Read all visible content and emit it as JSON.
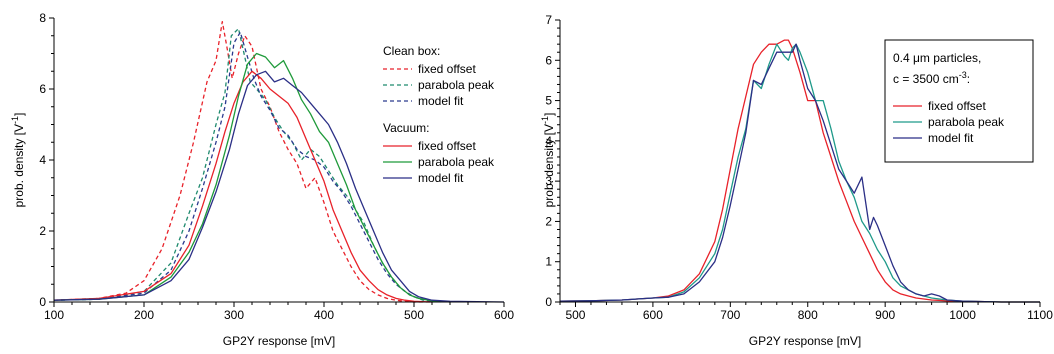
{
  "chart_data": [
    {
      "type": "line",
      "xlabel": "GP2Y response [mV]",
      "ylabel": "prob. density [V",
      "ylabel_sup": "-1",
      "ylabel_close": "]",
      "xlim": [
        100,
        600
      ],
      "ylim": [
        0,
        8
      ],
      "xticks": [
        100,
        200,
        300,
        400,
        500,
        600
      ],
      "yticks": [
        0,
        2,
        4,
        6,
        8
      ],
      "legend_groups": [
        {
          "title": "Clean box:",
          "entries": [
            "fixed offset",
            "parabola peak",
            "model fit"
          ]
        },
        {
          "title": "Vacuum:",
          "entries": [
            "fixed offset",
            "parabola peak",
            "model fit"
          ]
        }
      ],
      "series": [
        {
          "name": "fixed offset",
          "group": "Clean box:",
          "color": "#e8222a",
          "dash": true,
          "x": [
            100,
            150,
            180,
            200,
            220,
            240,
            255,
            270,
            280,
            287,
            292,
            298,
            305,
            312,
            320,
            330,
            340,
            350,
            360,
            370,
            380,
            390,
            400,
            410,
            420,
            430,
            440,
            450,
            460,
            470,
            480,
            490,
            500,
            520
          ],
          "y": [
            0.05,
            0.1,
            0.25,
            0.6,
            1.5,
            3.0,
            4.5,
            6.2,
            6.8,
            7.9,
            7.2,
            6.3,
            7.0,
            7.5,
            7.2,
            6.0,
            5.5,
            4.8,
            4.3,
            3.9,
            3.2,
            3.5,
            2.8,
            2.0,
            1.5,
            1.0,
            0.6,
            0.35,
            0.2,
            0.1,
            0.05,
            0.02,
            0.0,
            0.0
          ]
        },
        {
          "name": "parabola peak",
          "group": "Clean box:",
          "color": "#1f8a6e",
          "dash": true,
          "x": [
            100,
            150,
            200,
            230,
            250,
            265,
            280,
            290,
            297,
            305,
            312,
            318,
            325,
            335,
            345,
            355,
            365,
            375,
            385,
            395,
            405,
            415,
            425,
            435,
            445,
            455,
            465,
            475,
            485,
            495,
            510,
            530
          ],
          "y": [
            0.05,
            0.08,
            0.3,
            1.1,
            2.5,
            3.5,
            5.0,
            5.9,
            7.5,
            7.7,
            6.9,
            6.2,
            6.0,
            5.7,
            5.2,
            4.8,
            4.5,
            4.0,
            4.3,
            4.1,
            3.7,
            3.3,
            3.0,
            2.6,
            2.2,
            1.6,
            1.1,
            0.7,
            0.4,
            0.2,
            0.05,
            0.0
          ]
        },
        {
          "name": "model fit",
          "group": "Clean box:",
          "color": "#2b3a8e",
          "dash": true,
          "x": [
            100,
            150,
            200,
            230,
            250,
            265,
            280,
            290,
            300,
            307,
            315,
            322,
            330,
            340,
            350,
            360,
            370,
            380,
            390,
            400,
            410,
            420,
            430,
            440,
            450,
            460,
            470,
            480,
            490,
            500,
            520
          ],
          "y": [
            0.05,
            0.08,
            0.25,
            0.9,
            2.0,
            3.2,
            4.5,
            5.5,
            7.3,
            7.6,
            6.9,
            6.3,
            5.8,
            5.4,
            4.9,
            4.7,
            4.3,
            4.1,
            4.0,
            3.8,
            3.4,
            3.1,
            2.7,
            2.2,
            1.7,
            1.2,
            0.8,
            0.5,
            0.3,
            0.15,
            0.0
          ]
        },
        {
          "name": "fixed offset",
          "group": "Vacuum:",
          "color": "#e8222a",
          "dash": false,
          "x": [
            100,
            150,
            200,
            230,
            250,
            265,
            280,
            290,
            300,
            310,
            320,
            330,
            340,
            350,
            360,
            370,
            380,
            390,
            400,
            410,
            420,
            430,
            440,
            450,
            460,
            470,
            480,
            490,
            500,
            520
          ],
          "y": [
            0.05,
            0.1,
            0.3,
            0.8,
            1.6,
            2.7,
            3.9,
            4.8,
            5.6,
            6.2,
            6.5,
            6.3,
            6.0,
            5.8,
            5.6,
            5.2,
            4.6,
            4.0,
            3.4,
            2.6,
            2.0,
            1.4,
            0.9,
            0.6,
            0.35,
            0.2,
            0.1,
            0.05,
            0.02,
            0.0
          ]
        },
        {
          "name": "parabola peak",
          "group": "Vacuum:",
          "color": "#1f9a3a",
          "dash": false,
          "x": [
            100,
            150,
            200,
            230,
            250,
            265,
            280,
            295,
            305,
            315,
            325,
            335,
            345,
            355,
            365,
            375,
            385,
            395,
            405,
            415,
            425,
            435,
            445,
            455,
            465,
            475,
            485,
            495,
            505,
            520,
            540
          ],
          "y": [
            0.05,
            0.08,
            0.2,
            0.7,
            1.4,
            2.2,
            3.3,
            4.7,
            5.8,
            6.7,
            7.0,
            6.9,
            6.6,
            6.8,
            6.3,
            5.7,
            5.3,
            4.8,
            4.5,
            3.9,
            3.3,
            2.6,
            2.1,
            1.6,
            1.1,
            0.7,
            0.4,
            0.2,
            0.1,
            0.03,
            0.0
          ]
        },
        {
          "name": "model fit",
          "group": "Vacuum:",
          "color": "#2b2f86",
          "dash": false,
          "x": [
            100,
            150,
            200,
            230,
            250,
            265,
            280,
            295,
            305,
            315,
            325,
            335,
            345,
            355,
            365,
            375,
            385,
            395,
            405,
            415,
            425,
            435,
            445,
            455,
            465,
            475,
            485,
            495,
            505,
            520,
            540,
            600
          ],
          "y": [
            0.05,
            0.08,
            0.2,
            0.6,
            1.2,
            2.1,
            3.1,
            4.3,
            5.3,
            6.1,
            6.4,
            6.5,
            6.2,
            6.3,
            6.1,
            5.9,
            5.6,
            5.3,
            5.0,
            4.5,
            3.9,
            3.2,
            2.6,
            2.0,
            1.4,
            0.9,
            0.6,
            0.3,
            0.15,
            0.05,
            0.02,
            0.0
          ]
        }
      ]
    },
    {
      "type": "line",
      "xlabel": "GP2Y response [mV]",
      "ylabel": "prob. density [V",
      "ylabel_sup": "-1",
      "ylabel_close": "]",
      "xlim": [
        480,
        1100
      ],
      "ylim": [
        0,
        7
      ],
      "xticks": [
        500,
        600,
        700,
        800,
        900,
        1000,
        1100
      ],
      "yticks": [
        0,
        1,
        2,
        3,
        4,
        5,
        6,
        7
      ],
      "legend_title_1": "0.4 μm particles,",
      "legend_title_2a": "c = 3500 cm",
      "legend_title_2sup": "-3",
      "legend_title_2b": ":",
      "legend_entries": [
        "fixed offset",
        "parabola peak",
        "model fit"
      ],
      "series": [
        {
          "name": "fixed offset",
          "color": "#e8222a",
          "x": [
            480,
            520,
            560,
            600,
            620,
            640,
            660,
            680,
            690,
            700,
            710,
            720,
            730,
            740,
            750,
            760,
            770,
            775,
            780,
            790,
            800,
            810,
            820,
            830,
            840,
            850,
            860,
            870,
            880,
            890,
            900,
            910,
            920,
            930,
            940,
            960,
            980,
            1000,
            1050,
            1100
          ],
          "y": [
            0.02,
            0.03,
            0.05,
            0.1,
            0.15,
            0.3,
            0.7,
            1.5,
            2.3,
            3.3,
            4.3,
            5.1,
            5.9,
            6.2,
            6.4,
            6.4,
            6.5,
            6.5,
            6.3,
            5.7,
            5.0,
            5.0,
            4.2,
            3.6,
            3.0,
            2.5,
            2.0,
            1.6,
            1.2,
            0.8,
            0.5,
            0.3,
            0.2,
            0.15,
            0.1,
            0.05,
            0.03,
            0.02,
            0.0,
            0.0
          ]
        },
        {
          "name": "parabola peak",
          "color": "#1f9a8a",
          "x": [
            480,
            520,
            560,
            600,
            620,
            640,
            660,
            680,
            690,
            700,
            710,
            720,
            730,
            740,
            750,
            760,
            770,
            775,
            780,
            785,
            790,
            800,
            810,
            820,
            830,
            840,
            850,
            860,
            870,
            880,
            890,
            900,
            910,
            920,
            930,
            940,
            950,
            960,
            980,
            1000,
            1050,
            1100
          ],
          "y": [
            0.02,
            0.03,
            0.05,
            0.1,
            0.12,
            0.25,
            0.6,
            1.2,
            1.8,
            2.7,
            3.6,
            4.3,
            5.5,
            5.3,
            5.9,
            6.4,
            6.1,
            6.0,
            6.3,
            6.4,
            6.2,
            5.7,
            5.0,
            5.0,
            4.3,
            3.5,
            3.0,
            2.6,
            2.0,
            1.7,
            1.3,
            1.0,
            0.6,
            0.4,
            0.3,
            0.2,
            0.15,
            0.1,
            0.05,
            0.02,
            0.0,
            0.0
          ]
        },
        {
          "name": "model fit",
          "color": "#2b2f86",
          "x": [
            480,
            520,
            560,
            600,
            620,
            640,
            660,
            680,
            690,
            700,
            710,
            720,
            730,
            740,
            750,
            760,
            770,
            780,
            785,
            790,
            800,
            810,
            820,
            830,
            840,
            850,
            860,
            870,
            880,
            885,
            890,
            900,
            910,
            920,
            930,
            940,
            950,
            960,
            970,
            980,
            1000,
            1050,
            1100
          ],
          "y": [
            0.02,
            0.03,
            0.05,
            0.1,
            0.12,
            0.2,
            0.5,
            1.0,
            1.6,
            2.4,
            3.3,
            4.2,
            5.5,
            5.4,
            5.8,
            6.2,
            6.2,
            6.2,
            6.4,
            6.0,
            5.3,
            5.0,
            4.5,
            3.9,
            3.3,
            3.0,
            2.7,
            3.1,
            1.8,
            2.1,
            1.9,
            1.4,
            0.9,
            0.5,
            0.3,
            0.2,
            0.15,
            0.2,
            0.15,
            0.05,
            0.02,
            0.0,
            0.0
          ]
        }
      ]
    }
  ]
}
